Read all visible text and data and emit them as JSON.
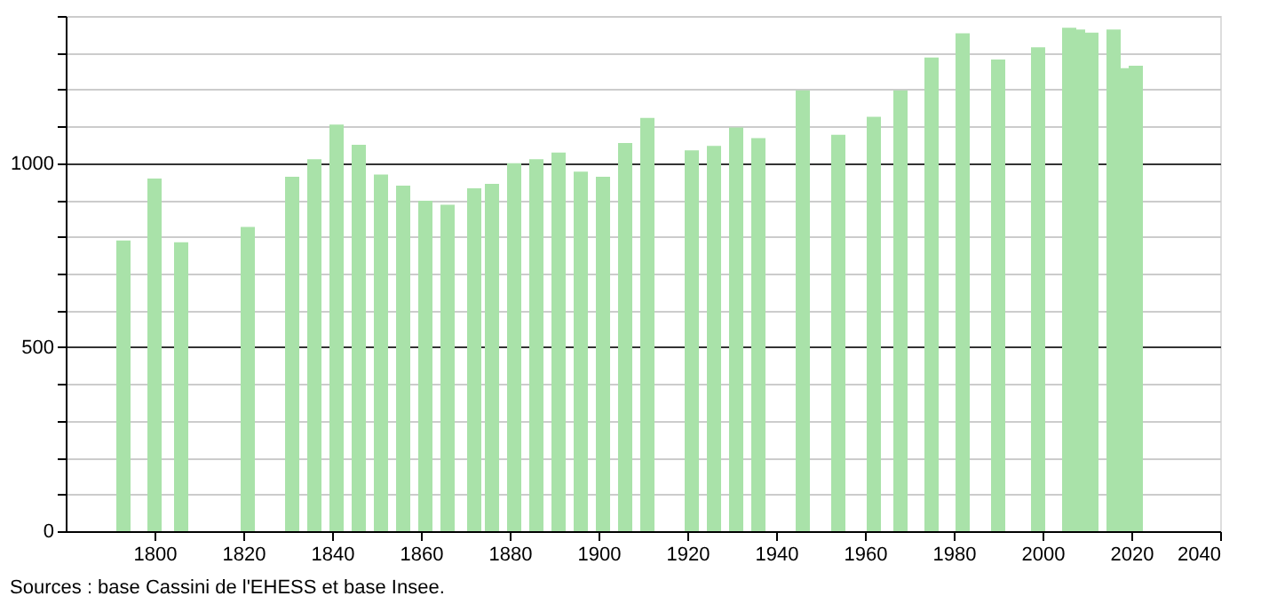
{
  "chart_data": {
    "type": "bar",
    "color": "#a9e2a9",
    "x": [
      1793,
      1800,
      1806,
      1821,
      1831,
      1836,
      1841,
      1846,
      1851,
      1856,
      1861,
      1866,
      1872,
      1876,
      1881,
      1886,
      1891,
      1896,
      1901,
      1906,
      1911,
      1921,
      1926,
      1931,
      1936,
      1946,
      1954,
      1962,
      1968,
      1975,
      1982,
      1990,
      1999,
      2006,
      2008,
      2011,
      2016,
      2019,
      2021
    ],
    "values": [
      790,
      958,
      785,
      827,
      963,
      1011,
      1105,
      1050,
      969,
      939,
      898,
      887,
      932,
      944,
      1000,
      1011,
      1029,
      977,
      963,
      1055,
      1123,
      1035,
      1047,
      1097,
      1068,
      1198,
      1077,
      1126,
      1198,
      1287,
      1353,
      1282,
      1315,
      1368,
      1363,
      1355,
      1363,
      1258,
      1265
    ],
    "xlim": [
      1780,
      2040
    ],
    "xticks": [
      1800,
      1820,
      1840,
      1860,
      1880,
      1900,
      1920,
      1940,
      1960,
      1980,
      2000,
      2020,
      2040
    ],
    "ylim": [
      0,
      1400
    ],
    "yticks": [
      0,
      {
        "value": 100,
        "label": null
      },
      {
        "value": 200,
        "label": null
      },
      {
        "value": 300,
        "label": null
      },
      {
        "value": 400,
        "label": null
      },
      500,
      {
        "value": 600,
        "label": null
      },
      {
        "value": 700,
        "label": null
      },
      {
        "value": 800,
        "label": null
      },
      {
        "value": 900,
        "label": null
      },
      1000,
      {
        "value": 1100,
        "label": null
      },
      {
        "value": 1200,
        "label": null
      },
      {
        "value": 1300,
        "label": null
      },
      {
        "value": 1400,
        "label": null
      }
    ],
    "grid": "y",
    "annotations": [
      "Sources : base Cassini de l'EHESS et base Insee."
    ]
  }
}
